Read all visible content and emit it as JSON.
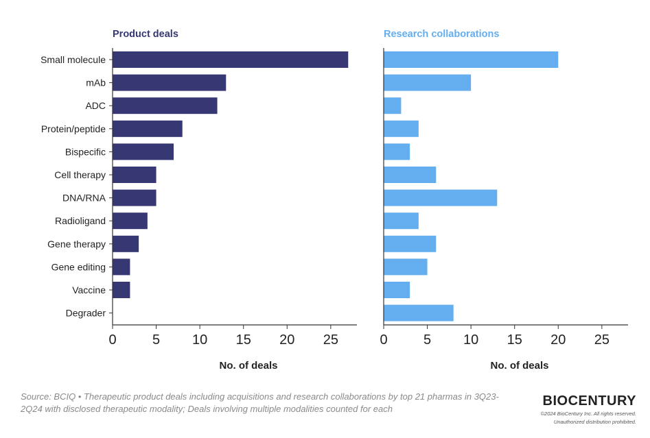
{
  "chart_data": [
    {
      "type": "bar",
      "orientation": "horizontal",
      "title": "Product deals",
      "xlabel": "No. of deals",
      "xlim": [
        0,
        28
      ],
      "xticks": [
        0,
        5,
        10,
        15,
        20,
        25
      ],
      "color": "#363773",
      "categories": [
        "Small molecule",
        "mAb",
        "ADC",
        "Protein/peptide",
        "Bispecific",
        "Cell therapy",
        "DNA/RNA",
        "Radioligand",
        "Gene therapy",
        "Gene editing",
        "Vaccine",
        "Degrader"
      ],
      "values": [
        27,
        13,
        12,
        8,
        7,
        5,
        5,
        4,
        3,
        2,
        2,
        0
      ]
    },
    {
      "type": "bar",
      "orientation": "horizontal",
      "title": "Research collaborations",
      "xlabel": "No. of deals",
      "xlim": [
        0,
        28
      ],
      "xticks": [
        0,
        5,
        10,
        15,
        20,
        25
      ],
      "color": "#64aef0",
      "categories": [
        "Small molecule",
        "mAb",
        "ADC",
        "Protein/peptide",
        "Bispecific",
        "Cell therapy",
        "DNA/RNA",
        "Radioligand",
        "Gene therapy",
        "Gene editing",
        "Vaccine",
        "Degrader"
      ],
      "values": [
        20,
        10,
        2,
        4,
        3,
        6,
        13,
        4,
        6,
        5,
        3,
        8
      ]
    }
  ],
  "footer": {
    "source": "Source: BCIQ • Therapeutic product deals including acquisitions and research collaborations by top 21 pharmas in 3Q23-2Q24 with disclosed therapeutic modality; Deals involving multiple modalities counted for each",
    "brand": "BIOCENTURY",
    "copyright": "©2024 BioCentury Inc. All rights reserved.",
    "notice": "Unauthorized distribution prohibited."
  }
}
